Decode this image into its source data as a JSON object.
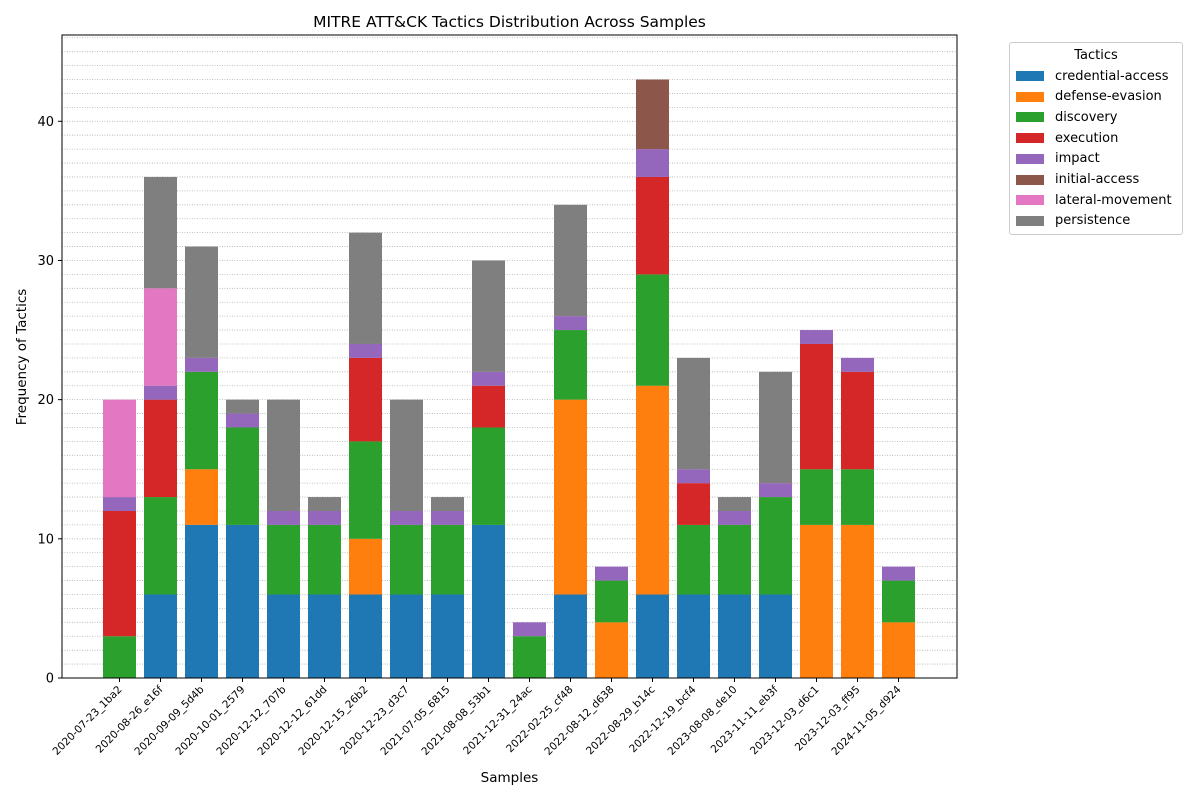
{
  "chart_data": {
    "type": "bar",
    "stacked": true,
    "title": "MITRE ATT&CK Tactics Distribution Across Samples",
    "xlabel": "Samples",
    "ylabel": "Frequency of Tactics",
    "ylim": [
      0,
      46.2
    ],
    "yticks": [
      0,
      10,
      20,
      30,
      40
    ],
    "grid": "y-minor-dotted",
    "legend_title": "Tactics",
    "legend_position": "outside-top-right",
    "categories": [
      "2020-07-23_1ba2",
      "2020-08-26_e16f",
      "2020-09-09_5d4b",
      "2020-10-01_2579",
      "2020-12-12_707b",
      "2020-12-12_61dd",
      "2020-12-15_26b2",
      "2020-12-23_d3c7",
      "2021-07-05_6815",
      "2021-08-08_53b1",
      "2021-12-31_24ac",
      "2022-02-25_cf48",
      "2022-08-12_d638",
      "2022-08-29_b14c",
      "2022-12-19_bcf4",
      "2023-08-08_de10",
      "2023-11-11_eb3f",
      "2023-12-03_d6c1",
      "2023-12-03_ff95",
      "2024-11-05_d924"
    ],
    "series": [
      {
        "name": "credential-access",
        "color": "#1f77b4",
        "values": [
          0,
          6,
          11,
          11,
          6,
          6,
          6,
          6,
          6,
          11,
          0,
          6,
          0,
          6,
          6,
          6,
          6,
          0,
          0,
          0
        ]
      },
      {
        "name": "defense-evasion",
        "color": "#ff7f0e",
        "values": [
          0,
          0,
          4,
          0,
          0,
          0,
          4,
          0,
          0,
          0,
          0,
          14,
          4,
          15,
          0,
          0,
          0,
          11,
          11,
          4
        ]
      },
      {
        "name": "discovery",
        "color": "#2ca02c",
        "values": [
          3,
          7,
          7,
          7,
          5,
          5,
          7,
          5,
          5,
          7,
          3,
          5,
          3,
          8,
          5,
          5,
          7,
          4,
          4,
          3
        ]
      },
      {
        "name": "execution",
        "color": "#d62728",
        "values": [
          9,
          7,
          0,
          0,
          0,
          0,
          6,
          0,
          0,
          3,
          0,
          0,
          0,
          7,
          3,
          0,
          0,
          9,
          7,
          0
        ]
      },
      {
        "name": "impact",
        "color": "#9467bd",
        "values": [
          1,
          1,
          1,
          1,
          1,
          1,
          1,
          1,
          1,
          1,
          1,
          1,
          1,
          2,
          1,
          1,
          1,
          1,
          1,
          1
        ]
      },
      {
        "name": "initial-access",
        "color": "#8c564b",
        "values": [
          0,
          0,
          0,
          0,
          0,
          0,
          0,
          0,
          0,
          0,
          0,
          0,
          0,
          5,
          0,
          0,
          0,
          0,
          0,
          0
        ]
      },
      {
        "name": "lateral-movement",
        "color": "#e377c2",
        "values": [
          7,
          7,
          0,
          0,
          0,
          0,
          0,
          0,
          0,
          0,
          0,
          0,
          0,
          0,
          0,
          0,
          0,
          0,
          0,
          0
        ]
      },
      {
        "name": "persistence",
        "color": "#7f7f7f",
        "values": [
          0,
          8,
          8,
          1,
          8,
          1,
          8,
          8,
          1,
          8,
          0,
          8,
          0,
          0,
          8,
          1,
          8,
          0,
          0,
          0
        ]
      }
    ]
  }
}
